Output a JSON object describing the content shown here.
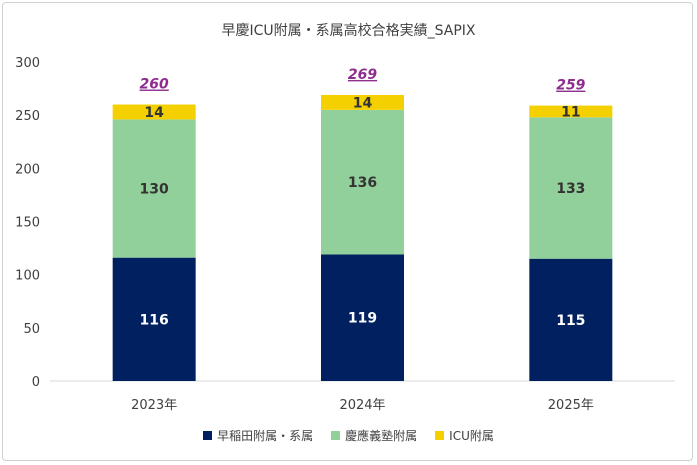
{
  "chart_data": {
    "type": "bar",
    "stacked": true,
    "title": "早慶ICU附属・系属高校合格実績_SAPIX",
    "categories": [
      "2023年",
      "2024年",
      "2025年"
    ],
    "series": [
      {
        "name": "早稲田附属・系属",
        "values": [
          116,
          119,
          115
        ],
        "color": "#002060"
      },
      {
        "name": "慶應義塾附属",
        "values": [
          130,
          136,
          133
        ],
        "color": "#92d09b"
      },
      {
        "name": "ICU附属",
        "values": [
          14,
          14,
          11
        ],
        "color": "#f5d000"
      }
    ],
    "totals": [
      260,
      269,
      259
    ],
    "total_color": "#8e2d8e",
    "ylim": [
      0,
      300
    ],
    "yticks": [
      0,
      50,
      100,
      150,
      200,
      250,
      300
    ],
    "grid": false,
    "legend_position": "bottom"
  }
}
